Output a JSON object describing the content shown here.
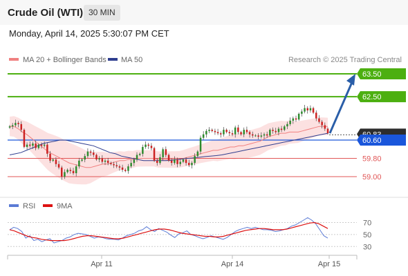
{
  "header": {
    "title": "Crude Oil (WTI)",
    "timeframe": "30 MIN",
    "datetime": "Monday, April 14, 2025 5:30:07 PM CET"
  },
  "legend": {
    "bollinger_label": "MA 20 + Bollinger Bands",
    "ma50_label": "MA 50",
    "credit": "Research © 2025 Trading Central",
    "rsi_label": "RSI",
    "rsi_ma_label": "9MA"
  },
  "colors": {
    "resistance": "#4caf10",
    "pivot": "#1a56db",
    "support": "#e05555",
    "bollinger_fill": "#fbdcdc",
    "ma20": "#f08080",
    "ma50": "#2f3e8f",
    "candle_up": "#2e8b2e",
    "candle_down": "#cc2222",
    "arrow": "#2a5ea8",
    "rsi": "#5b7bd5",
    "rsi_ma": "#dd1111"
  },
  "chart_data": [
    {
      "type": "candlestick",
      "x_labels": [
        "Apr 11",
        "Apr 14",
        "Apr 15"
      ],
      "y_range": [
        58.6,
        64.0
      ],
      "levels": [
        {
          "name": "resistance",
          "value": 63.5,
          "label": "63.50"
        },
        {
          "name": "resistance",
          "value": 62.5,
          "label": "62.50"
        },
        {
          "name": "last_price",
          "value": 60.83,
          "label": "60.83"
        },
        {
          "name": "pivot",
          "value": 60.6,
          "label": "60.60"
        },
        {
          "name": "support",
          "value": 59.8,
          "label": "59.80"
        },
        {
          "name": "support",
          "value": 59.0,
          "label": "59.00"
        }
      ],
      "target": 63.5,
      "closes": [
        61.2,
        61.25,
        61.35,
        61.3,
        61.05,
        60.3,
        60.4,
        60.35,
        60.45,
        60.25,
        60.4,
        60.35,
        60.4,
        60.0,
        59.7,
        59.75,
        59.55,
        59.4,
        59.0,
        59.2,
        59.3,
        59.25,
        59.15,
        59.45,
        59.7,
        59.75,
        59.9,
        60.1,
        60.05,
        59.95,
        59.75,
        59.8,
        59.65,
        59.7,
        59.6,
        59.55,
        59.5,
        59.45,
        59.4,
        59.3,
        59.25,
        59.45,
        59.6,
        59.75,
        59.95,
        60.0,
        60.3,
        60.4,
        60.35,
        60.25,
        59.7,
        59.6,
        59.85,
        60.2,
        59.95,
        59.7,
        59.6,
        59.75,
        59.55,
        59.65,
        59.75,
        59.6,
        59.5,
        59.6,
        59.9,
        60.1,
        60.7,
        60.85,
        61.0,
        61.05,
        61.0,
        60.95,
        60.9,
        60.85,
        61.05,
        60.95,
        60.9,
        60.85,
        61.15,
        60.95,
        60.85,
        61.05,
        60.95,
        60.85,
        60.8,
        60.8,
        60.75,
        60.8,
        60.85,
        60.8,
        61.05,
        61.0,
        60.95,
        61.1,
        61.05,
        61.2,
        61.3,
        61.45,
        61.55,
        61.5,
        61.75,
        61.85,
        62.0,
        61.9,
        62.0,
        61.8,
        61.55,
        61.4,
        61.25,
        61.1,
        60.9
      ],
      "ma20": [
        61.2,
        61.2,
        61.1,
        60.95,
        60.85,
        60.7,
        60.55,
        60.4,
        60.25,
        60.1,
        60.0,
        59.9,
        59.8,
        59.7,
        59.6,
        59.55,
        59.5,
        59.45,
        59.4,
        59.4,
        59.45,
        59.5,
        59.55,
        59.55,
        59.6,
        59.65,
        59.7,
        59.7,
        59.75,
        59.75,
        59.8,
        59.8,
        59.8,
        59.8,
        59.8,
        59.75,
        59.75,
        59.75,
        59.75,
        59.75,
        59.75,
        59.8,
        59.85,
        59.9,
        59.95,
        60.0,
        60.05,
        60.1,
        60.15,
        60.15,
        60.2,
        60.25,
        60.3,
        60.3,
        60.35,
        60.35,
        60.4,
        60.45,
        60.5,
        60.55,
        60.65,
        60.75,
        60.8,
        60.85,
        60.9,
        60.9,
        60.95,
        60.95,
        60.95,
        61.0,
        61.05,
        61.1,
        61.15,
        61.2,
        61.2,
        61.2
      ],
      "ma50": [
        59.95,
        60.0,
        60.05,
        60.15,
        60.25,
        60.35,
        60.45,
        60.5,
        60.55,
        60.6,
        60.6,
        60.55,
        60.5,
        60.45,
        60.4,
        60.35,
        60.25,
        60.15,
        60.05,
        60.0,
        59.9,
        59.85,
        59.8,
        59.75,
        59.7,
        59.7,
        59.7,
        59.7,
        59.7,
        59.72,
        59.75,
        59.78,
        59.8,
        59.82,
        59.85,
        59.88,
        59.9,
        59.92,
        59.95,
        60.0,
        60.05,
        60.1,
        60.15,
        60.2,
        60.25,
        60.3,
        60.35,
        60.4,
        60.45,
        60.5,
        60.55,
        60.6,
        60.65,
        60.7,
        60.75,
        60.8,
        60.85,
        60.9
      ]
    },
    {
      "type": "line",
      "title": "RSI",
      "y_ticks": [
        70,
        50,
        30
      ],
      "y_range": [
        20,
        82
      ],
      "rsi": [
        58,
        62,
        60,
        55,
        44,
        48,
        40,
        42,
        38,
        41,
        43,
        36,
        38,
        40,
        44,
        46,
        50,
        52,
        51,
        50,
        47,
        44,
        46,
        45,
        43,
        42,
        42,
        41,
        44,
        48,
        50,
        52,
        56,
        58,
        63,
        58,
        55,
        60,
        57,
        54,
        49,
        45,
        51,
        53,
        56,
        50,
        48,
        45,
        43,
        45,
        48,
        46,
        44,
        42,
        45,
        50,
        55,
        58,
        60,
        62,
        60,
        62,
        60,
        58,
        58,
        57,
        55,
        56,
        58,
        60,
        64,
        66,
        70,
        74,
        78,
        74,
        68,
        58,
        48,
        44
      ],
      "rsi_ma": [
        58,
        56,
        53,
        50,
        47,
        45,
        44,
        42,
        41,
        40,
        40,
        40,
        40,
        41,
        43,
        45,
        47,
        48,
        48,
        47,
        46,
        45,
        44,
        43,
        43,
        44,
        46,
        48,
        50,
        52,
        54,
        56,
        58,
        59,
        59,
        58,
        56,
        54,
        52,
        51,
        50,
        49,
        48,
        47,
        47,
        46,
        46,
        47,
        49,
        51,
        53,
        55,
        57,
        58,
        59,
        60,
        60,
        59,
        58,
        58,
        58,
        59,
        61,
        63,
        65,
        67,
        69,
        70,
        68,
        64,
        60
      ]
    }
  ]
}
